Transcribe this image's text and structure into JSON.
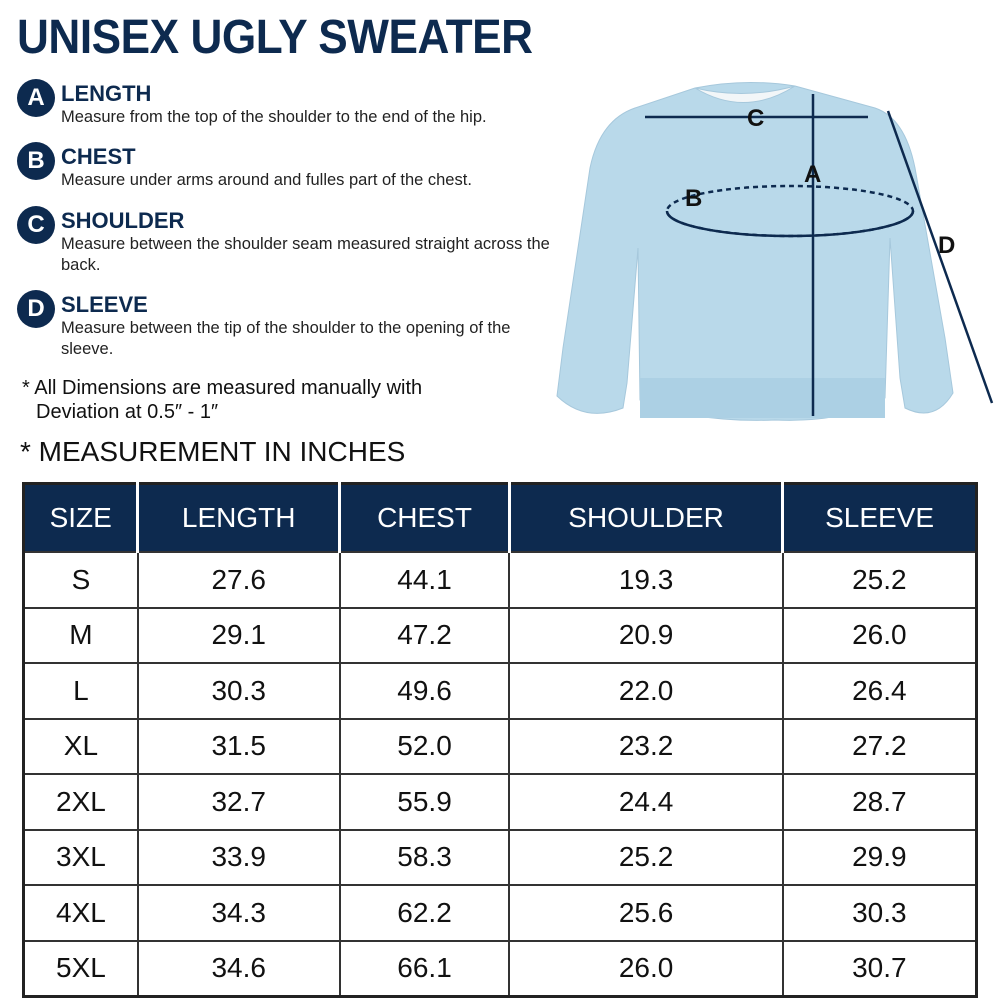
{
  "title": "UNISEX UGLY SWEATER",
  "measures": [
    {
      "letter": "A",
      "name": "LENGTH",
      "desc": "Measure from the top of the shoulder to the end of the hip."
    },
    {
      "letter": "B",
      "name": "CHEST",
      "desc": "Measure under arms around and fulles part of the chest."
    },
    {
      "letter": "C",
      "name": "SHOULDER",
      "desc": "Measure between the shoulder seam measured straight across the back."
    },
    {
      "letter": "D",
      "name": "SLEEVE",
      "desc": "Measure between the tip of the shoulder to the opening of the sleeve."
    }
  ],
  "note": "* All Dimensions are measured manually with",
  "note2": "Deviation at 0.5″ - 1″",
  "unit_heading": "* MEASUREMENT IN INCHES",
  "diagram_labels": {
    "a": "A",
    "b": "B",
    "c": "C",
    "d": "D"
  },
  "colors": {
    "navy": "#0d2a4f",
    "sweater": "#b9d9ea"
  },
  "table": {
    "headers": [
      "SIZE",
      "LENGTH",
      "CHEST",
      "SHOULDER",
      "SLEEVE"
    ],
    "rows": [
      [
        "S",
        "27.6",
        "44.1",
        "19.3",
        "25.2"
      ],
      [
        "M",
        "29.1",
        "47.2",
        "20.9",
        "26.0"
      ],
      [
        "L",
        "30.3",
        "49.6",
        "22.0",
        "26.4"
      ],
      [
        "XL",
        "31.5",
        "52.0",
        "23.2",
        "27.2"
      ],
      [
        "2XL",
        "32.7",
        "55.9",
        "24.4",
        "28.7"
      ],
      [
        "3XL",
        "33.9",
        "58.3",
        "25.2",
        "29.9"
      ],
      [
        "4XL",
        "34.3",
        "62.2",
        "25.6",
        "30.3"
      ],
      [
        "5XL",
        "34.6",
        "66.1",
        "26.0",
        "30.7"
      ]
    ]
  }
}
